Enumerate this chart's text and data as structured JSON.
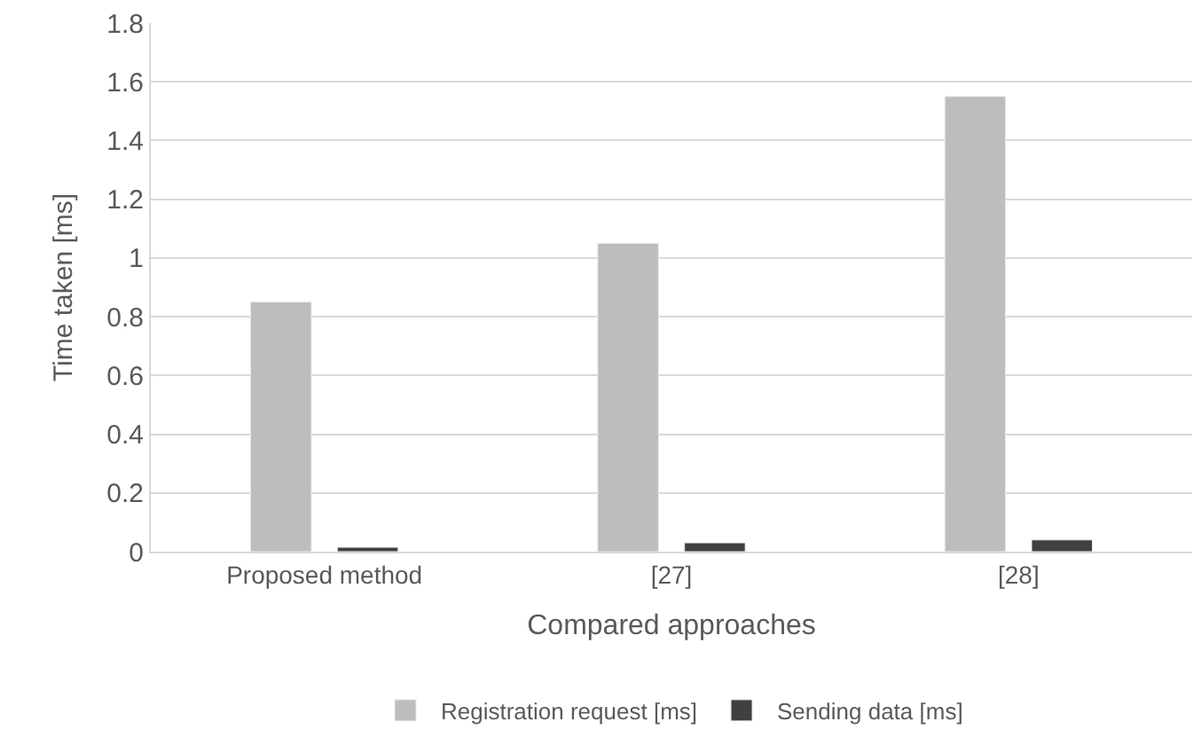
{
  "chart_data": {
    "type": "bar",
    "xlabel": "Compared approaches",
    "ylabel": "Time taken [ms]",
    "categories": [
      "Proposed method",
      "[27]",
      "[28]"
    ],
    "series": [
      {
        "name": "Registration request [ms]",
        "color": "#bdbdbd",
        "values": [
          0.85,
          1.05,
          1.55
        ]
      },
      {
        "name": "Sending data [ms]",
        "color": "#404040",
        "values": [
          0.015,
          0.03,
          0.04
        ]
      }
    ],
    "ylim": [
      0,
      1.8
    ],
    "yticks": [
      0,
      0.2,
      0.4,
      0.6,
      0.8,
      1,
      1.2,
      1.4,
      1.6,
      1.8
    ],
    "grid": "y",
    "legend": "bottom"
  }
}
